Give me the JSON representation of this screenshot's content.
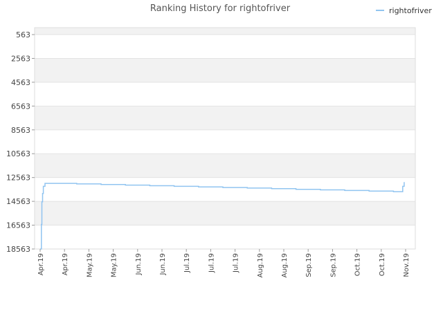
{
  "chart_data": {
    "type": "line",
    "title": "Ranking History for rightofriver",
    "xlabel": "",
    "ylabel": "",
    "y_axis_inverted": true,
    "ylim": [
      563,
      18563
    ],
    "yticks": [
      "563",
      "2563",
      "4563",
      "6563",
      "8563",
      "10563",
      "12563",
      "14563",
      "16563",
      "18563"
    ],
    "xticks": [
      "Apr.19",
      "Apr.19",
      "May.19",
      "May.19",
      "Jun.19",
      "Jun.19",
      "Jul.19",
      "Jul.19",
      "Jul.19",
      "Aug.19",
      "Aug.19",
      "Sep.19",
      "Sep.19",
      "Oct.19",
      "Oct.19",
      "Nov.19"
    ],
    "grid": true,
    "legend": {
      "position": "top-right",
      "entries": [
        "rightofriver"
      ]
    },
    "series": [
      {
        "name": "rightofriver",
        "color": "#90c4f0",
        "x": [
          0.0,
          0.05,
          0.07,
          0.1,
          0.13,
          0.2,
          1.0,
          1.5,
          2.0,
          2.5,
          3.0,
          3.5,
          4.0,
          4.5,
          5.0,
          5.5,
          6.0,
          6.5,
          7.0,
          7.5,
          8.0,
          8.5,
          9.0,
          9.5,
          10.0,
          10.5,
          11.0,
          11.5,
          12.0,
          12.5,
          13.0,
          13.5,
          14.0,
          14.5,
          14.75,
          14.88,
          14.94
        ],
        "y": [
          18563,
          16500,
          14600,
          13900,
          13300,
          13050,
          13050,
          13100,
          13100,
          13150,
          13150,
          13200,
          13200,
          13250,
          13250,
          13300,
          13300,
          13350,
          13350,
          13400,
          13400,
          13450,
          13450,
          13500,
          13500,
          13550,
          13550,
          13600,
          13600,
          13650,
          13650,
          13700,
          13700,
          13750,
          13750,
          13300,
          12950
        ]
      }
    ]
  }
}
